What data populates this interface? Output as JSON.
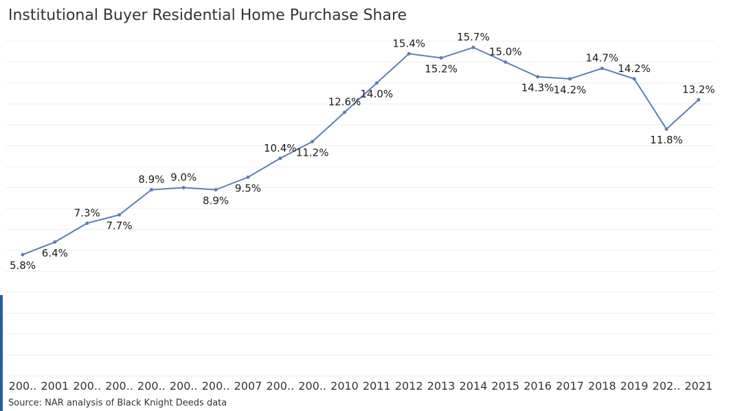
{
  "header": {
    "title": "Institutional Buyer Residential Home Purchase Share"
  },
  "footer": {
    "source": "Source: NAR analysis of Black Knight Deeds data"
  },
  "colors": {
    "line": "#5b7faf",
    "accent": "#1f5fa8",
    "grid": "#eeeeee"
  },
  "chart_data": {
    "type": "line",
    "title": "Institutional Buyer Residential Home Purchase Share",
    "categories": [
      "200..",
      "2001",
      "200..",
      "200..",
      "200..",
      "200..",
      "200..",
      "2007",
      "200..",
      "200..",
      "2010",
      "2011",
      "2012",
      "2013",
      "2014",
      "2015",
      "2016",
      "2017",
      "2018",
      "2019",
      "202..",
      "2021"
    ],
    "values": [
      5.8,
      6.4,
      7.3,
      7.7,
      8.9,
      9.0,
      8.9,
      9.5,
      10.4,
      11.2,
      12.6,
      14.0,
      15.4,
      15.2,
      15.7,
      15.0,
      14.3,
      14.2,
      14.7,
      14.2,
      11.8,
      13.2
    ],
    "data_labels": [
      "5.8%",
      "6.4%",
      "7.3%",
      "7.7%",
      "8.9%",
      "9.0%",
      "8.9%",
      "9.5%",
      "10.4%",
      "11.2%",
      "12.6%",
      "14.0%",
      "15.4%",
      "15.2%",
      "15.7%",
      "15.0%",
      "14.3%",
      "14.2%",
      "14.7%",
      "14.2%",
      "11.8%",
      "13.2%"
    ],
    "label_positions": [
      "below",
      "below",
      "above",
      "below",
      "above",
      "above",
      "below",
      "below",
      "above",
      "below",
      "above",
      "below",
      "above",
      "below",
      "above",
      "above",
      "below",
      "below",
      "above",
      "above",
      "below",
      "above"
    ],
    "ylim": [
      0,
      16
    ],
    "grid": true,
    "legend": "none",
    "xlabel": "",
    "ylabel": ""
  }
}
